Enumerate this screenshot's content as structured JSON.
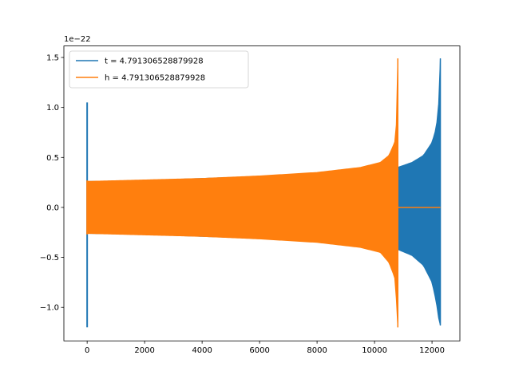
{
  "chart_data": {
    "type": "line",
    "title": "",
    "xlabel": "",
    "ylabel": "",
    "y_offset_label": "1e−22",
    "xlim": [
      -810,
      12970
    ],
    "ylim": [
      -1.335,
      1.615
    ],
    "x_ticks": [
      {
        "value": 0,
        "label": "0"
      },
      {
        "value": 2000,
        "label": "2000"
      },
      {
        "value": 4000,
        "label": "4000"
      },
      {
        "value": 6000,
        "label": "6000"
      },
      {
        "value": 8000,
        "label": "8000"
      },
      {
        "value": 10000,
        "label": "10000"
      },
      {
        "value": 12000,
        "label": "12000"
      }
    ],
    "y_ticks": [
      {
        "value": -1.0,
        "label": "−1.0"
      },
      {
        "value": -0.5,
        "label": "−0.5"
      },
      {
        "value": 0.0,
        "label": "0.0"
      },
      {
        "value": 0.5,
        "label": "0.5"
      },
      {
        "value": 1.0,
        "label": "1.0"
      },
      {
        "value": 1.5,
        "label": "1.5"
      }
    ],
    "grid": false,
    "legend_position": "top-left",
    "series": [
      {
        "name": "t = 4.791306528879928",
        "color": "#1f77b4",
        "spike": {
          "x": 0,
          "ymax": 1.05,
          "ymin": -1.2
        },
        "envelope_upper": [
          [
            0,
            0.26
          ],
          [
            2000,
            0.27
          ],
          [
            4000,
            0.29
          ],
          [
            6000,
            0.31
          ],
          [
            8000,
            0.34
          ],
          [
            9500,
            0.37
          ],
          [
            10800,
            0.4
          ],
          [
            11300,
            0.45
          ],
          [
            11700,
            0.52
          ],
          [
            12000,
            0.65
          ],
          [
            12150,
            0.8
          ],
          [
            12250,
            1.1
          ],
          [
            12290,
            1.49
          ]
        ],
        "envelope_lower": [
          [
            0,
            -0.26
          ],
          [
            2000,
            -0.27
          ],
          [
            4000,
            -0.29
          ],
          [
            6000,
            -0.31
          ],
          [
            8000,
            -0.34
          ],
          [
            9500,
            -0.37
          ],
          [
            10800,
            -0.42
          ],
          [
            11300,
            -0.48
          ],
          [
            11700,
            -0.58
          ],
          [
            12000,
            -0.75
          ],
          [
            12150,
            -0.95
          ],
          [
            12250,
            -1.15
          ],
          [
            12290,
            -1.18
          ]
        ],
        "tail_end_x": 12290
      },
      {
        "name": "h = 4.791306528879928",
        "color": "#ff7f0e",
        "spike": {
          "x": 0,
          "ymax": 0.27,
          "ymin": -0.27
        },
        "envelope_upper": [
          [
            0,
            0.26
          ],
          [
            2000,
            0.275
          ],
          [
            4000,
            0.29
          ],
          [
            6000,
            0.315
          ],
          [
            8000,
            0.35
          ],
          [
            9500,
            0.4
          ],
          [
            10200,
            0.45
          ],
          [
            10500,
            0.52
          ],
          [
            10700,
            0.65
          ],
          [
            10780,
            0.9
          ],
          [
            10810,
            1.49
          ]
        ],
        "envelope_lower": [
          [
            0,
            -0.26
          ],
          [
            2000,
            -0.275
          ],
          [
            4000,
            -0.29
          ],
          [
            6000,
            -0.315
          ],
          [
            8000,
            -0.35
          ],
          [
            9500,
            -0.4
          ],
          [
            10200,
            -0.45
          ],
          [
            10500,
            -0.55
          ],
          [
            10700,
            -0.7
          ],
          [
            10780,
            -1.0
          ],
          [
            10810,
            -1.2
          ]
        ],
        "flat_after": {
          "x_start": 10810,
          "x_end": 12290,
          "y": 0.0
        }
      }
    ]
  }
}
